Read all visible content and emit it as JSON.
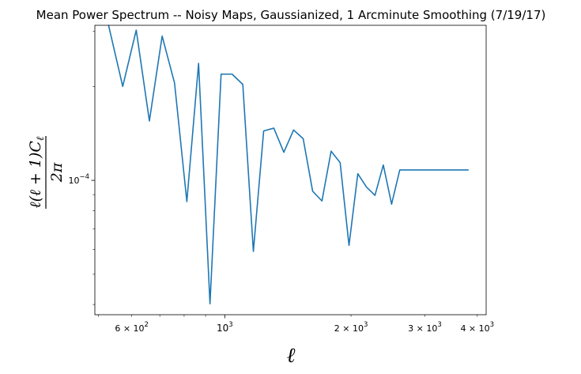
{
  "chart_data": {
    "type": "line",
    "title": "Mean Power Spectrum -- Noisy Maps, Gaussianized, 1 Arcminute Smoothing (7/19/17)",
    "xlabel": "ℓ",
    "ylabel_numerator": "ℓ(ℓ + 1)C",
    "ylabel_subscript": "ℓ",
    "ylabel_denominator": "2π",
    "xscale": "log",
    "yscale": "log",
    "xlim": [
      490,
      4200
    ],
    "ylim": [
      3.71e-05,
      0.000314
    ],
    "grid": false,
    "x_tick_labels": [
      {
        "value": 600,
        "mantissa": "6",
        "base": "10",
        "exp": "2"
      },
      {
        "value": 1000,
        "mantissa": "",
        "base": "10",
        "exp": "3"
      },
      {
        "value": 2000,
        "mantissa": "2",
        "base": "10",
        "exp": "3"
      },
      {
        "value": 3000,
        "mantissa": "3",
        "base": "10",
        "exp": "3"
      },
      {
        "value": 4000,
        "mantissa": "4",
        "base": "10",
        "exp": "3"
      }
    ],
    "y_tick_labels": [
      {
        "value": 0.0001,
        "base": "10",
        "exp": "−4"
      }
    ],
    "series": [
      {
        "color": "#1f77b4",
        "x": [
          528,
          571,
          615,
          661,
          709,
          759,
          812,
          866,
          922,
          980,
          1041,
          1104,
          1170,
          1238,
          1309,
          1383,
          1459,
          1538,
          1620,
          1705,
          1793,
          1884,
          1978,
          2076,
          2177,
          2281,
          2388,
          2499,
          2614,
          2732,
          2854,
          2979,
          3108,
          3241,
          3378,
          3520,
          3665,
          3815
        ],
        "y": [
          0.000315,
          0.0002,
          0.000303,
          0.000155,
          0.00029,
          0.000205,
          8.55e-05,
          0.000237,
          4.02e-05,
          0.000219,
          0.000219,
          0.000203,
          5.92e-05,
          0.000144,
          0.000147,
          0.000123,
          0.000145,
          0.000136,
          9.23e-05,
          8.59e-05,
          0.000124,
          0.000114,
          6.19e-05,
          0.000105,
          9.52e-05,
          8.95e-05,
          0.000112,
          8.39e-05,
          0.000108,
          0.000108,
          0.000108,
          0.000108,
          0.000108,
          0.000108,
          0.000108,
          0.000108,
          0.000108,
          0.000108
        ]
      }
    ]
  }
}
